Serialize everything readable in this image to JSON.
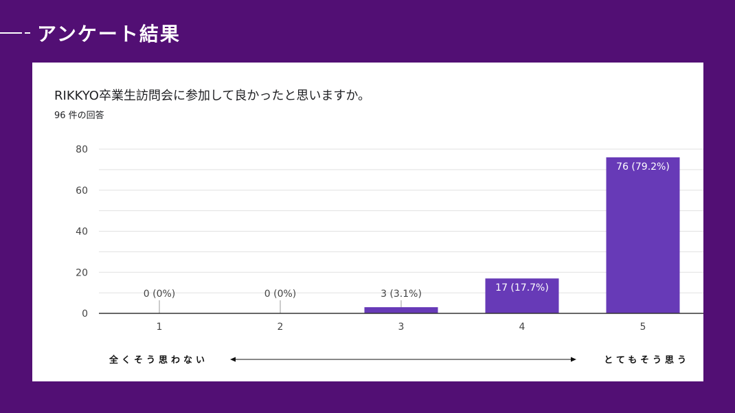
{
  "slide": {
    "title": "アンケート結果"
  },
  "card": {
    "question": "RIKKYO卒業生訪問会に参加して良かったと思いますか。",
    "response_count": "96 件の回答",
    "scale_low_label": "全くそう思わない",
    "scale_high_label": "とてもそう思う"
  },
  "colors": {
    "background": "#520f74",
    "bar": "#673ab7",
    "bar_label_inside": "#ffffff",
    "gridline": "#e0e0e0",
    "axis": "#333333"
  },
  "chart_data": {
    "type": "bar",
    "categories": [
      "1",
      "2",
      "3",
      "4",
      "5"
    ],
    "values": [
      0,
      0,
      3,
      17,
      76
    ],
    "data_labels": [
      "0 (0%)",
      "0 (0%)",
      "3 (3.1%)",
      "17 (17.7%)",
      "76 (79.2%)"
    ],
    "title": "RIKKYO卒業生訪問会に参加して良かったと思いますか。",
    "subtitle": "96 件の回答",
    "ylim": [
      0,
      80
    ],
    "yticks": [
      0,
      20,
      40,
      60,
      80
    ],
    "grid": true
  }
}
